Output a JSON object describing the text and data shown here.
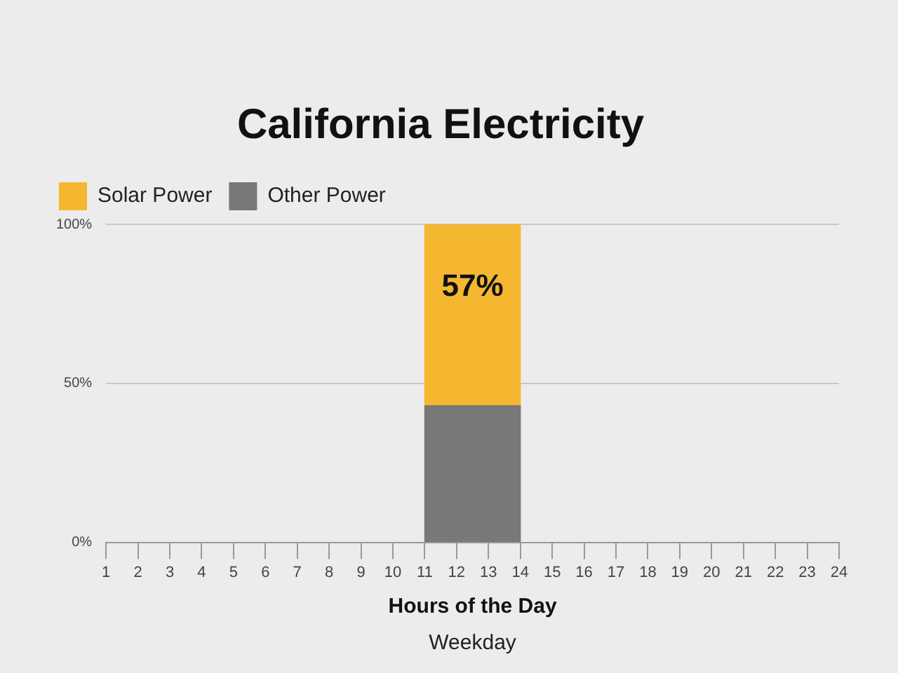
{
  "chart_data": {
    "type": "bar",
    "title": "California Electricity",
    "xlabel": "Hours of the Day",
    "annotations": [
      "Weekday"
    ],
    "x": [
      11.5,
      12.5,
      13.5
    ],
    "stacked": true,
    "series": [
      {
        "name": "Other Power",
        "color": "#78787b",
        "values": [
          43,
          43,
          43
        ]
      },
      {
        "name": "Solar Power",
        "color": "#f5b730",
        "values": [
          57,
          57,
          57
        ],
        "value_labels": [
          null,
          "57%",
          null
        ]
      }
    ],
    "xlim": [
      1,
      24
    ],
    "xticks": [
      1,
      2,
      3,
      4,
      5,
      6,
      7,
      8,
      9,
      10,
      11,
      12,
      13,
      14,
      15,
      16,
      17,
      18,
      19,
      20,
      21,
      22,
      23,
      24
    ],
    "ylim": [
      0,
      100
    ],
    "yticks": [
      {
        "value": 0,
        "label": "0%"
      },
      {
        "value": 50,
        "label": "50%"
      },
      {
        "value": 100,
        "label": "100%"
      }
    ],
    "grid": "y",
    "legend": "top left"
  }
}
